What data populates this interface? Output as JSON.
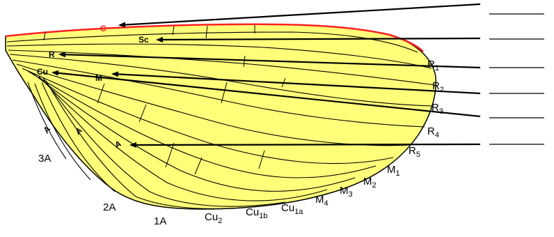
{
  "colors": {
    "wing_fill": "#ffff7a",
    "vein": "#000000",
    "costa_edge": "#ff2020",
    "costa_label": "#ff2020"
  },
  "vein_labels": {
    "costa": "C",
    "subcosta": "Sc",
    "radius": "R",
    "media": "M",
    "cubitus": "Cu",
    "anal_a1": "A",
    "anal_a2": "A",
    "anal_a3": "A"
  },
  "margin_labels": {
    "r1": {
      "base": "R",
      "sub": "1"
    },
    "r2": {
      "base": "R",
      "sub": "2"
    },
    "r3": {
      "base": "R",
      "sub": "3"
    },
    "r4": {
      "base": "R",
      "sub": "4"
    },
    "r5": {
      "base": "R",
      "sub": "5"
    },
    "m1": {
      "base": "M",
      "sub": "1"
    },
    "m2": {
      "base": "M",
      "sub": "2"
    },
    "m3": {
      "base": "M",
      "sub": "3"
    },
    "m4": {
      "base": "M",
      "sub": "4"
    },
    "cu1a": {
      "base": "Cu",
      "sub": "1a"
    },
    "cu1b": {
      "base": "Cu",
      "sub": "1b"
    },
    "cu2": {
      "base": "Cu",
      "sub": "2"
    },
    "a1": {
      "base": "1A"
    },
    "a2": {
      "base": "2A"
    },
    "a3": {
      "base": "3A"
    }
  },
  "answer_blanks": [
    "",
    "",
    "",
    "",
    "",
    ""
  ]
}
